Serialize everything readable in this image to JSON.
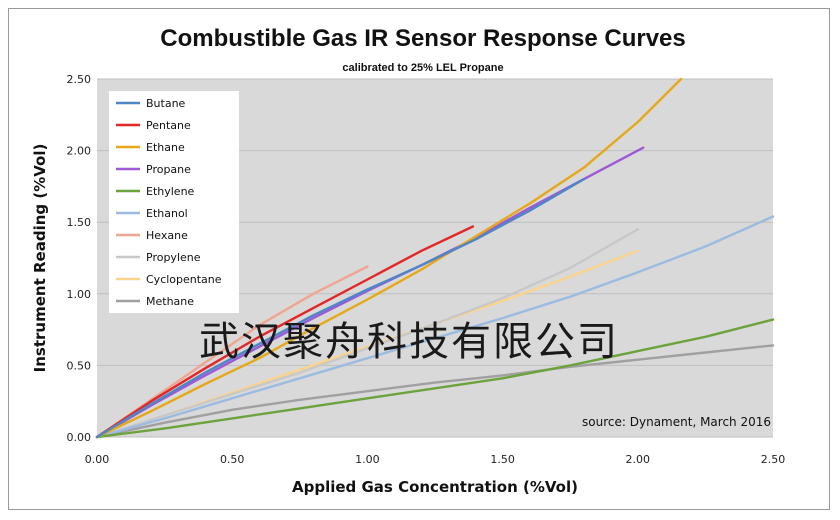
{
  "chart_data": {
    "type": "line",
    "title": "Combustible Gas IR Sensor Response Curves",
    "subtitle": "calibrated to 25% LEL Propane",
    "xlabel": "Applied Gas Concentration (%Vol)",
    "ylabel": "Instrument Reading (%Vol)",
    "xlim": [
      0,
      2.5
    ],
    "ylim": [
      0,
      2.5
    ],
    "x_ticks": [
      "0.00",
      "0.50",
      "1.00",
      "1.50",
      "2.00",
      "2.50"
    ],
    "y_ticks": [
      "0.00",
      "0.50",
      "1.00",
      "1.50",
      "2.00",
      "2.50"
    ],
    "grid": "horizontal",
    "plot_background": "#d9d9d9",
    "legend_placement": "top-left",
    "annotation": "source: Dynament, March 2016",
    "watermark": "武汉聚舟科技有限公司",
    "series": [
      {
        "name": "Butane",
        "color": "#4f86c6",
        "points": [
          [
            0,
            0
          ],
          [
            0.2,
            0.23
          ],
          [
            0.4,
            0.45
          ],
          [
            0.6,
            0.65
          ],
          [
            0.8,
            0.85
          ],
          [
            1.0,
            1.03
          ],
          [
            1.2,
            1.2
          ],
          [
            1.4,
            1.38
          ],
          [
            1.6,
            1.58
          ],
          [
            1.8,
            1.8
          ]
        ]
      },
      {
        "name": "Pentane",
        "color": "#e32626",
        "points": [
          [
            0,
            0
          ],
          [
            0.2,
            0.25
          ],
          [
            0.4,
            0.48
          ],
          [
            0.6,
            0.7
          ],
          [
            0.8,
            0.9
          ],
          [
            1.0,
            1.1
          ],
          [
            1.2,
            1.3
          ],
          [
            1.39,
            1.47
          ]
        ]
      },
      {
        "name": "Ethane",
        "color": "#e6a817",
        "points": [
          [
            0,
            0
          ],
          [
            0.2,
            0.18
          ],
          [
            0.4,
            0.37
          ],
          [
            0.6,
            0.55
          ],
          [
            0.8,
            0.76
          ],
          [
            1.0,
            0.96
          ],
          [
            1.2,
            1.17
          ],
          [
            1.4,
            1.4
          ],
          [
            1.6,
            1.63
          ],
          [
            1.8,
            1.88
          ],
          [
            2.0,
            2.2
          ],
          [
            2.16,
            2.5
          ]
        ]
      },
      {
        "name": "Propane",
        "color": "#9e59d6",
        "points": [
          [
            0,
            0
          ],
          [
            0.2,
            0.22
          ],
          [
            0.4,
            0.43
          ],
          [
            0.6,
            0.63
          ],
          [
            0.8,
            0.83
          ],
          [
            1.0,
            1.02
          ],
          [
            1.2,
            1.2
          ],
          [
            1.4,
            1.39
          ],
          [
            1.6,
            1.6
          ],
          [
            1.8,
            1.8
          ],
          [
            2.02,
            2.02
          ]
        ]
      },
      {
        "name": "Ethylene",
        "color": "#6ca33d",
        "points": [
          [
            0,
            0
          ],
          [
            0.25,
            0.06
          ],
          [
            0.5,
            0.13
          ],
          [
            0.75,
            0.2
          ],
          [
            1.0,
            0.27
          ],
          [
            1.25,
            0.34
          ],
          [
            1.5,
            0.41
          ],
          [
            1.75,
            0.5
          ],
          [
            2.0,
            0.6
          ],
          [
            2.25,
            0.7
          ],
          [
            2.5,
            0.82
          ]
        ]
      },
      {
        "name": "Ethanol",
        "color": "#9bbbe0",
        "points": [
          [
            0,
            0
          ],
          [
            0.25,
            0.13
          ],
          [
            0.5,
            0.27
          ],
          [
            0.75,
            0.41
          ],
          [
            1.0,
            0.55
          ],
          [
            1.25,
            0.69
          ],
          [
            1.5,
            0.83
          ],
          [
            1.75,
            0.98
          ],
          [
            2.0,
            1.15
          ],
          [
            2.25,
            1.33
          ],
          [
            2.5,
            1.54
          ]
        ]
      },
      {
        "name": "Hexane",
        "color": "#f0a590",
        "points": [
          [
            0,
            0
          ],
          [
            0.2,
            0.26
          ],
          [
            0.4,
            0.52
          ],
          [
            0.6,
            0.78
          ],
          [
            0.8,
            1.0
          ],
          [
            1.0,
            1.19
          ]
        ]
      },
      {
        "name": "Propylene",
        "color": "#c8c8c8",
        "points": [
          [
            0,
            0
          ],
          [
            0.25,
            0.15
          ],
          [
            0.5,
            0.3
          ],
          [
            0.75,
            0.45
          ],
          [
            1.0,
            0.62
          ],
          [
            1.25,
            0.79
          ],
          [
            1.5,
            0.97
          ],
          [
            1.75,
            1.18
          ],
          [
            2.0,
            1.45
          ]
        ]
      },
      {
        "name": "Cyclopentane",
        "color": "#fbd48c",
        "points": [
          [
            0,
            0
          ],
          [
            0.25,
            0.15
          ],
          [
            0.5,
            0.31
          ],
          [
            0.75,
            0.47
          ],
          [
            1.0,
            0.63
          ],
          [
            1.25,
            0.79
          ],
          [
            1.5,
            0.95
          ],
          [
            1.75,
            1.12
          ],
          [
            2.0,
            1.3
          ]
        ]
      },
      {
        "name": "Methane",
        "color": "#a0a0a0",
        "points": [
          [
            0,
            0
          ],
          [
            0.25,
            0.1
          ],
          [
            0.5,
            0.19
          ],
          [
            0.75,
            0.26
          ],
          [
            1.0,
            0.32
          ],
          [
            1.25,
            0.38
          ],
          [
            1.5,
            0.43
          ],
          [
            1.75,
            0.49
          ],
          [
            2.0,
            0.54
          ],
          [
            2.25,
            0.59
          ],
          [
            2.5,
            0.64
          ]
        ]
      }
    ]
  }
}
